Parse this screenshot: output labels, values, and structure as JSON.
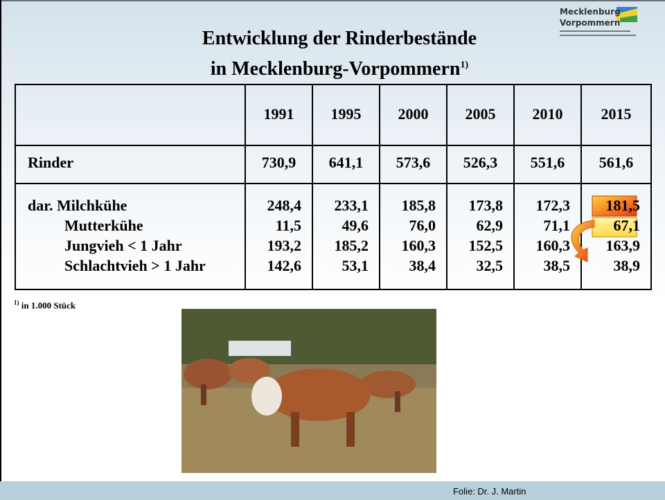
{
  "header": {
    "title_line1": "Entwicklung der Rinderbestände",
    "title_line2": "in Mecklenburg-Vorpommern",
    "title_note": "1)"
  },
  "logo": {
    "line1": "Mecklenburg",
    "line2": "Vorpommern"
  },
  "table": {
    "columns": [
      "1991",
      "1995",
      "2000",
      "2005",
      "2010",
      "2015"
    ],
    "rows": [
      {
        "label": "Rinder",
        "values": [
          "730,9",
          "641,1",
          "573,6",
          "526,3",
          "551,6",
          "561,6"
        ]
      },
      {
        "label": "dar. Milchkühe",
        "values": [
          "248,4",
          "233,1",
          "185,8",
          "173,8",
          "172,3",
          "181,5"
        ]
      },
      {
        "label": "Mutterkühe",
        "values": [
          "11,5",
          "49,6",
          "76,0",
          "62,9",
          "71,1",
          "67,1"
        ]
      },
      {
        "label": "Jungvieh < 1 Jahr",
        "values": [
          "193,2",
          "185,2",
          "160,3",
          "152,5",
          "160,3",
          "163,9"
        ]
      },
      {
        "label": "Schlachtvieh > 1 Jahr",
        "values": [
          "142,6",
          "53,1",
          "38,4",
          "32,5",
          "38,5",
          "38,9"
        ]
      }
    ]
  },
  "footnote": {
    "mark": "1)",
    "text": "in 1.000 Stück"
  },
  "footer": {
    "text": "Folie: Dr. J. Martin"
  }
}
